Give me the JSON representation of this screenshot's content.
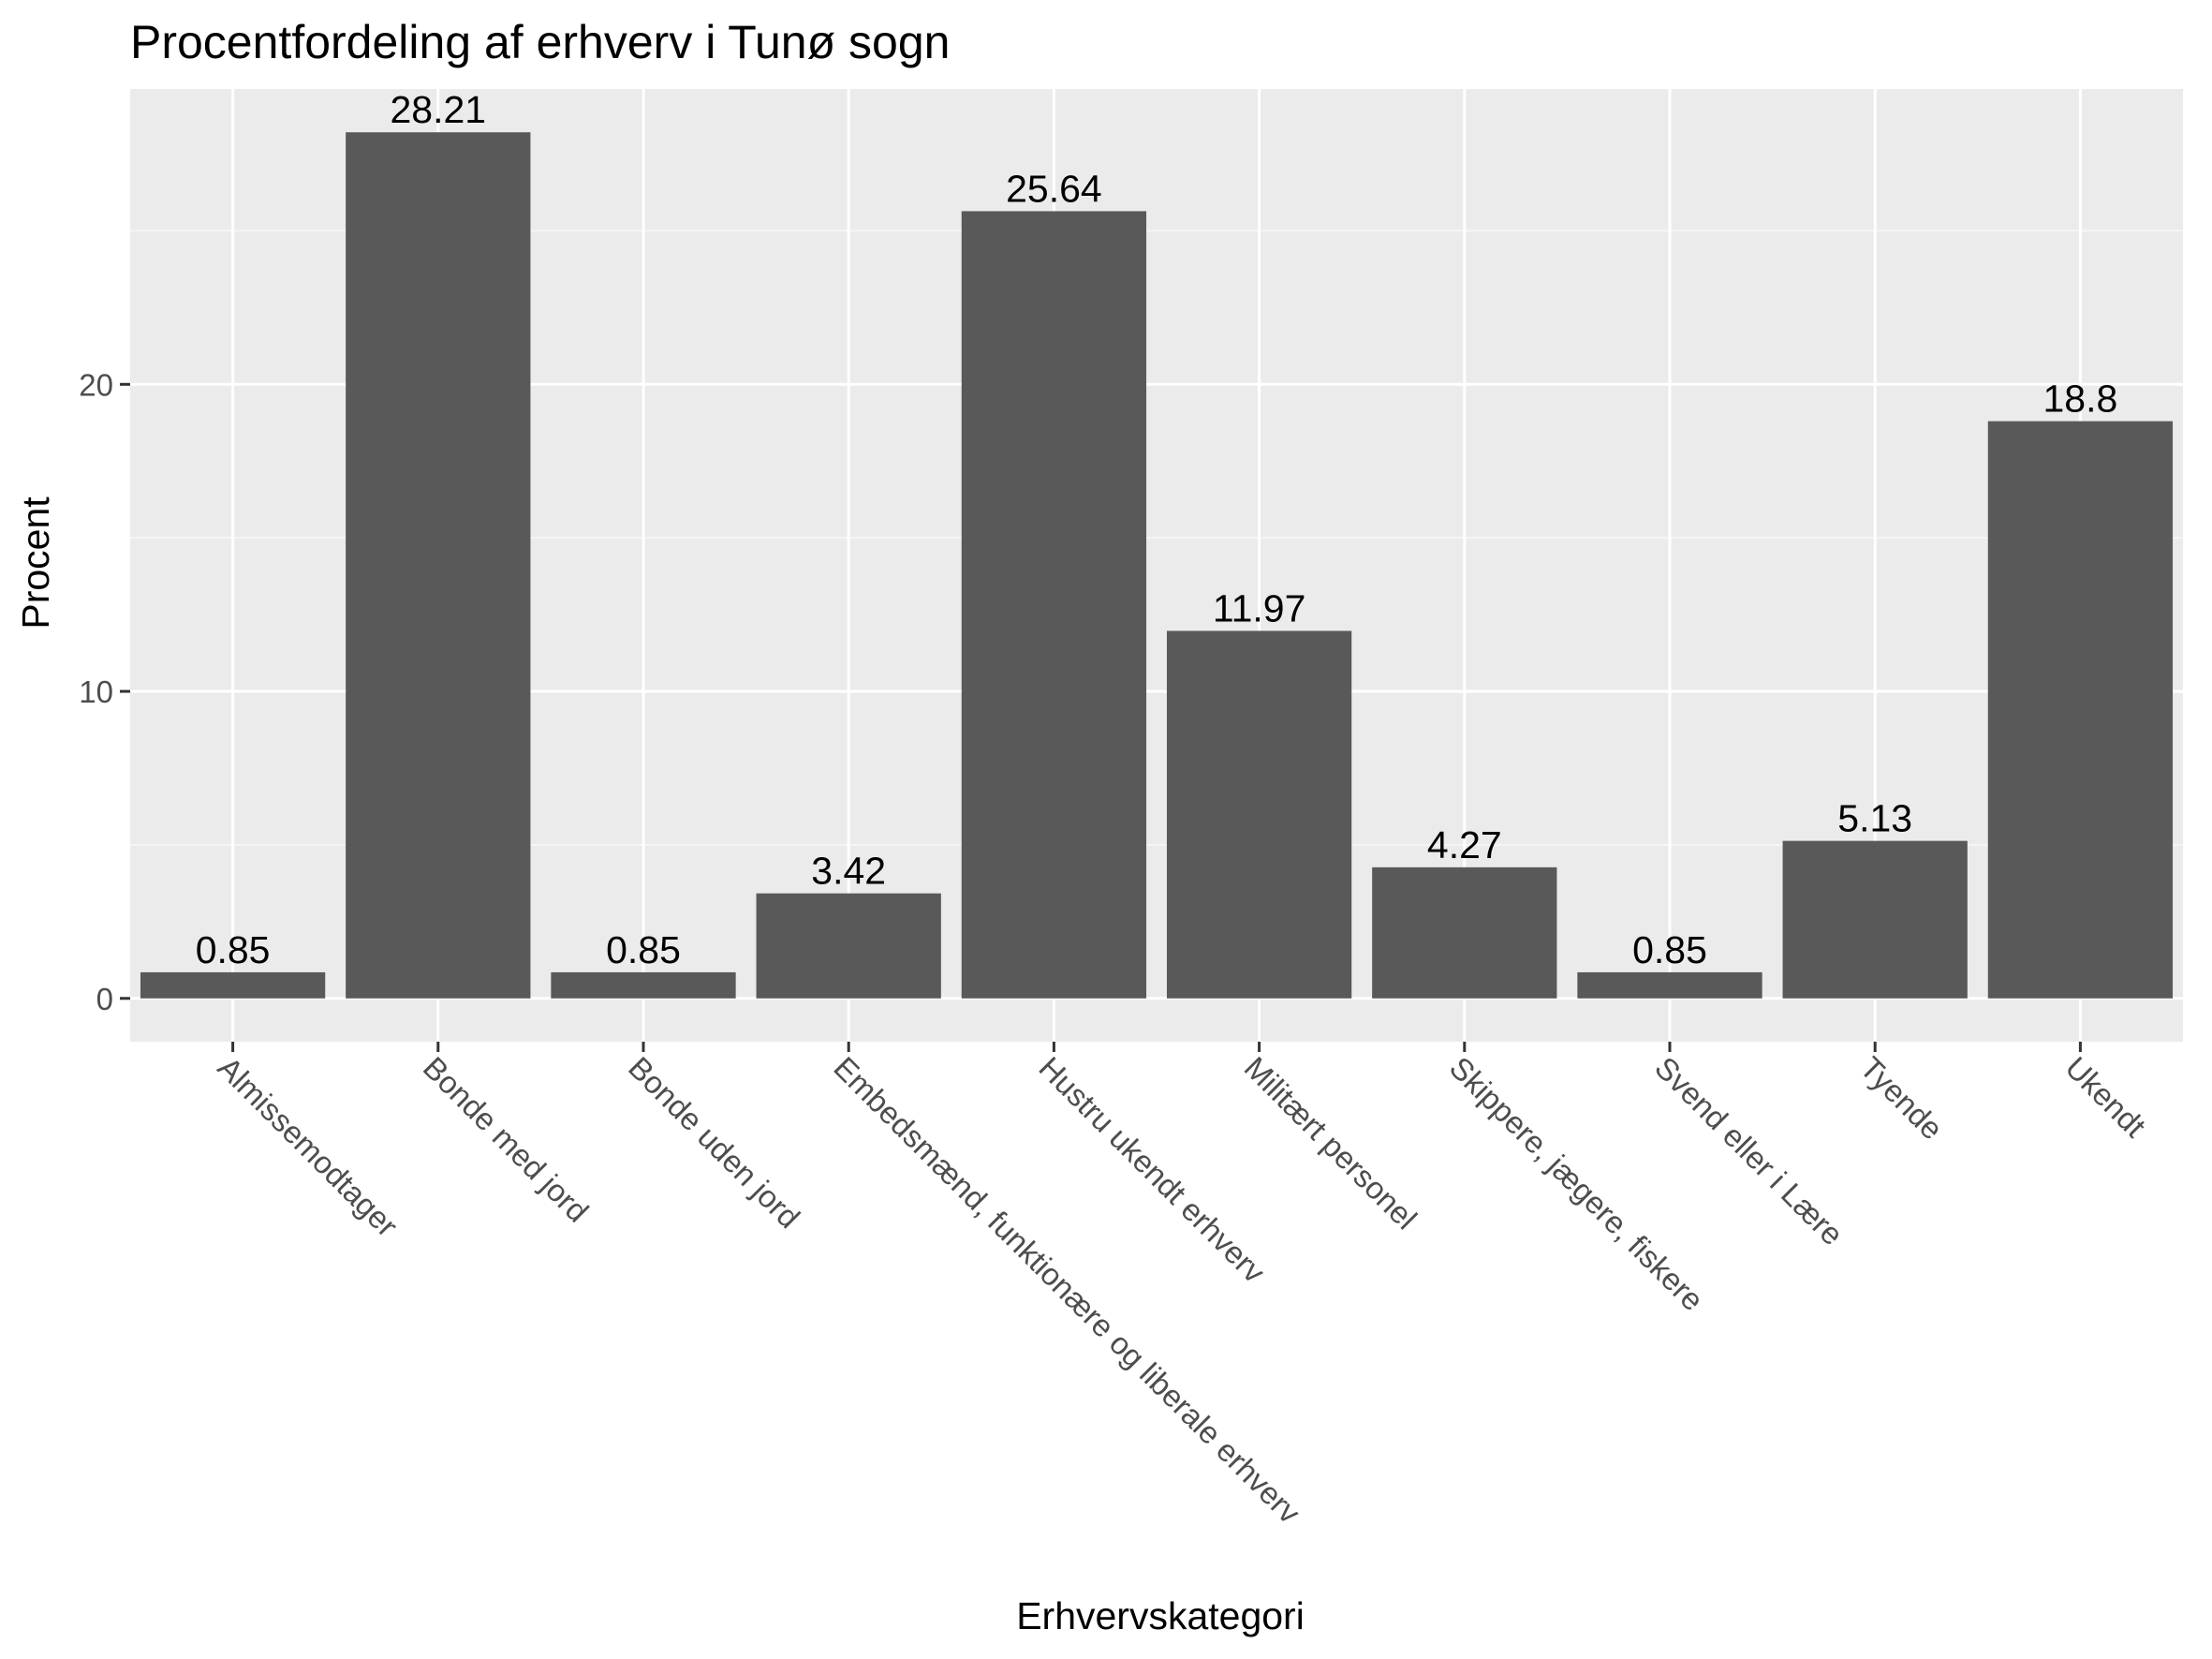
{
  "chart_data": {
    "type": "bar",
    "title": "Procentfordeling af erhverv i Tunø sogn",
    "xlabel": "Erhvervskategori",
    "ylabel": "Procent",
    "categories": [
      "Almissemodtager",
      "Bonde med jord",
      "Bonde uden jord",
      "Embedsmænd, funktionære og liberale erhverv",
      "Hustru ukendt erhverv",
      "Militært personel",
      "Skippere, jægere, fiskere",
      "Svend eller i Lære",
      "Tyende",
      "Ukendt"
    ],
    "values": [
      0.85,
      28.21,
      0.85,
      3.42,
      25.64,
      11.97,
      4.27,
      0.85,
      5.13,
      18.8
    ],
    "data_labels": [
      "0.85",
      "28.21",
      "0.85",
      "3.42",
      "25.64",
      "11.97",
      "4.27",
      "0.85",
      "5.13",
      "18.8"
    ],
    "y_ticks": [
      0,
      10,
      20
    ],
    "y_tick_labels": [
      "0",
      "10",
      "20"
    ],
    "ylim": [
      -1.41,
      29.62
    ],
    "grid": true,
    "legend": "none",
    "x_tick_label_rotation_deg": 45,
    "colors": {
      "bar": "#595959",
      "panel": "#ebebeb",
      "grid_major": "#ffffff",
      "grid_minor": "#f5f5f5",
      "tick": "#333333",
      "tick_label": "#4d4d4d",
      "text": "#000000"
    }
  }
}
